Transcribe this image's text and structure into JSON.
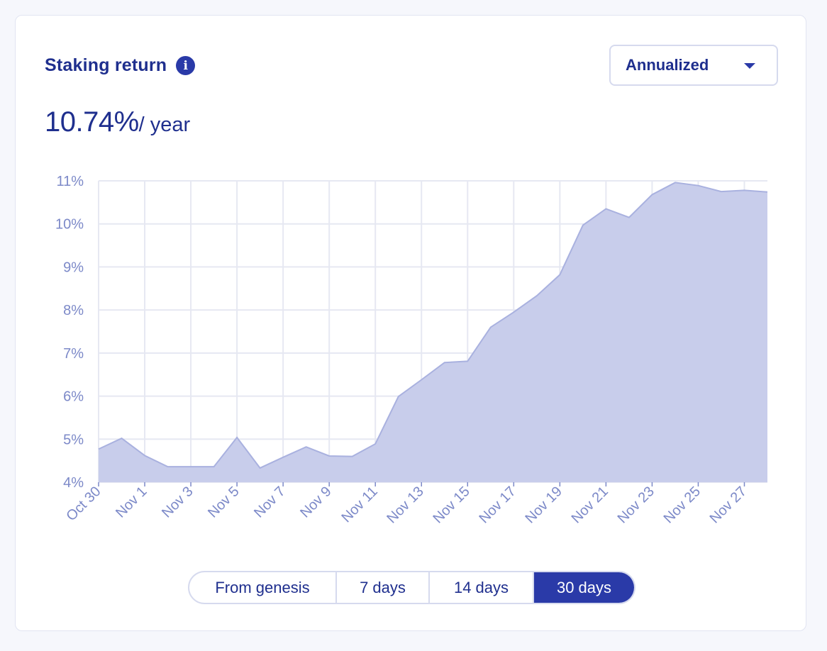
{
  "card": {
    "title": "Staking return",
    "info_icon": "info-icon",
    "value": "10.74%",
    "unit": "/ year"
  },
  "select": {
    "selected": "Annualized",
    "icon": "caret-down-icon"
  },
  "range": {
    "options": [
      "From genesis",
      "7 days",
      "14 days",
      "30 days"
    ],
    "active_index": 3
  },
  "colors": {
    "accent": "#2a3aa8",
    "title": "#1f2f8e",
    "area_fill": "#c8cdeb",
    "area_line": "#a9b1df",
    "grid": "#e6e8f2",
    "tick_text": "#7c89c8"
  },
  "chart_data": {
    "type": "area",
    "x": [
      "Oct 30",
      "Oct 31",
      "Nov 1",
      "Nov 2",
      "Nov 3",
      "Nov 4",
      "Nov 5",
      "Nov 6",
      "Nov 7",
      "Nov 8",
      "Nov 9",
      "Nov 10",
      "Nov 11",
      "Nov 12",
      "Nov 13",
      "Nov 14",
      "Nov 15",
      "Nov 16",
      "Nov 17",
      "Nov 18",
      "Nov 19",
      "Nov 20",
      "Nov 21",
      "Nov 22",
      "Nov 23",
      "Nov 24",
      "Nov 25",
      "Nov 26",
      "Nov 27",
      "Nov 28"
    ],
    "values": [
      4.77,
      5.02,
      4.62,
      4.36,
      4.36,
      4.36,
      5.04,
      4.33,
      4.58,
      4.82,
      4.61,
      4.6,
      4.89,
      5.99,
      6.38,
      6.78,
      6.81,
      7.6,
      7.95,
      8.33,
      8.82,
      9.97,
      10.35,
      10.15,
      10.68,
      10.96,
      10.89,
      10.75,
      10.78,
      10.74
    ],
    "x_tick_labels": [
      "Oct 30",
      "Nov 1",
      "Nov 3",
      "Nov 5",
      "Nov 7",
      "Nov 9",
      "Nov 11",
      "Nov 13",
      "Nov 15",
      "Nov 17",
      "Nov 19",
      "Nov 21",
      "Nov 23",
      "Nov 25",
      "Nov 27"
    ],
    "y_ticks": [
      4,
      5,
      6,
      7,
      8,
      9,
      10,
      11
    ],
    "y_tick_suffix": "%",
    "ylim": [
      4,
      11
    ],
    "grid": true,
    "legend": "none",
    "title": "",
    "xlabel": "",
    "ylabel": ""
  }
}
